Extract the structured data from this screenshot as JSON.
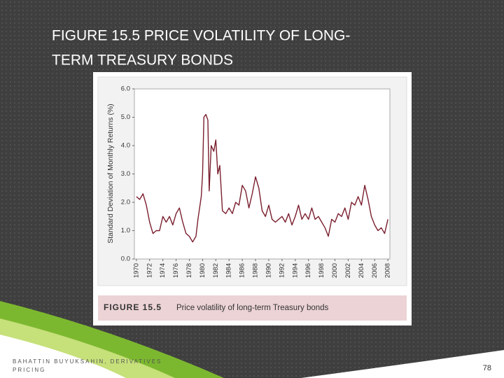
{
  "slide": {
    "title": [
      "FIGURE 15.5 PRICE VOLATILITY OF LONG-",
      "TERM TREASURY BONDS"
    ],
    "footer": [
      "BAHATTIN BUYUKSAHIN, DERIVATIVES",
      "PRICING"
    ],
    "page_number": "78"
  },
  "chart_data": {
    "type": "line",
    "ylabel": "Standard Deviation of Monthly Returns (%)",
    "caption_label": "FIGURE 15.5",
    "caption": "Price volatility of long-term Treasury bonds",
    "color": "#7a1f2e",
    "x": [
      1970,
      1970.5,
      1971,
      1971.5,
      1972,
      1972.5,
      1973,
      1973.5,
      1974,
      1974.5,
      1975,
      1975.5,
      1976,
      1976.5,
      1977,
      1977.5,
      1978,
      1978.5,
      1979,
      1979.3,
      1979.8,
      1980,
      1980.2,
      1980.5,
      1980.8,
      1981,
      1981.3,
      1981.7,
      1982,
      1982.3,
      1982.6,
      1983,
      1983.5,
      1984,
      1984.5,
      1985,
      1985.5,
      1986,
      1986.5,
      1987,
      1987.5,
      1988,
      1988.5,
      1989,
      1989.5,
      1990,
      1990.5,
      1991,
      1991.5,
      1992,
      1992.5,
      1993,
      1993.5,
      1994,
      1994.5,
      1995,
      1995.5,
      1996,
      1996.5,
      1997,
      1997.5,
      1998,
      1998.5,
      1999,
      1999.5,
      2000,
      2000.5,
      2001,
      2001.5,
      2002,
      2002.5,
      2003,
      2003.5,
      2004,
      2004.5,
      2005,
      2005.5,
      2006,
      2006.5,
      2007,
      2007.5,
      2008
    ],
    "values": [
      2.2,
      2.1,
      2.3,
      1.9,
      1.3,
      0.9,
      1.0,
      1.0,
      1.5,
      1.3,
      1.5,
      1.2,
      1.6,
      1.8,
      1.3,
      0.9,
      0.8,
      0.6,
      0.8,
      1.4,
      2.2,
      3.0,
      5.0,
      5.1,
      4.9,
      2.4,
      4.0,
      3.8,
      4.2,
      3.0,
      3.3,
      1.7,
      1.6,
      1.8,
      1.6,
      2.0,
      1.9,
      2.6,
      2.4,
      1.8,
      2.3,
      2.9,
      2.5,
      1.7,
      1.5,
      1.9,
      1.4,
      1.3,
      1.4,
      1.5,
      1.3,
      1.6,
      1.2,
      1.5,
      1.9,
      1.4,
      1.6,
      1.4,
      1.8,
      1.4,
      1.5,
      1.3,
      1.1,
      0.8,
      1.4,
      1.3,
      1.6,
      1.5,
      1.8,
      1.4,
      2.0,
      1.9,
      2.2,
      1.9,
      2.6,
      2.1,
      1.5,
      1.2,
      1.0,
      1.1,
      0.9,
      1.4
    ],
    "xlim": [
      1969.7,
      2008.3
    ],
    "xticks": [
      1970,
      1972,
      1974,
      1976,
      1978,
      1980,
      1982,
      1984,
      1986,
      1988,
      1990,
      1992,
      1994,
      1996,
      1998,
      2000,
      2002,
      2004,
      2006,
      2008
    ],
    "ylim": [
      0,
      6
    ],
    "yticks": [
      {
        "value": 0,
        "label": "0.0"
      },
      {
        "value": 1,
        "label": "1.0"
      },
      {
        "value": 2,
        "label": "2.0"
      },
      {
        "value": 3,
        "label": "3.0"
      },
      {
        "value": 4,
        "label": "4.0"
      },
      {
        "value": 5,
        "label": "5.0"
      },
      {
        "value": 6,
        "label": "6.0"
      }
    ]
  }
}
